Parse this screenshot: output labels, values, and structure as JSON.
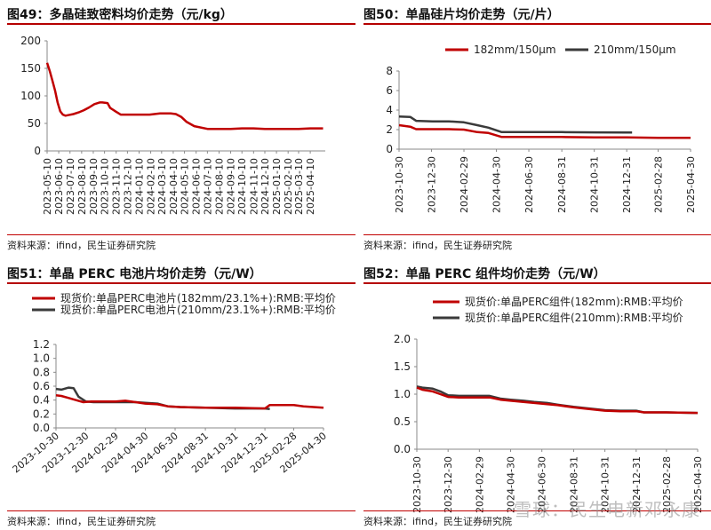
{
  "panels": [
    {
      "id": "p49",
      "title": "图49：多晶硅致密料均价走势（元/kg）",
      "source": "资料来源：ifind，民生证券研究院"
    },
    {
      "id": "p50",
      "title": "图50：单晶硅片均价走势（元/片）",
      "source": "资料来源：ifind，民生证券研究院"
    },
    {
      "id": "p51",
      "title": "图51：单晶 PERC 电池片均价走势（元/W）",
      "source": "资料来源：ifind，民生证券研究院"
    },
    {
      "id": "p52",
      "title": "图52：单晶 PERC 组件均价走势（元/W）",
      "source": "资料来源：ifind，民生证券研究院"
    }
  ],
  "watermark": "雪球：民生电新邓永康",
  "colors": {
    "red": "#c00000",
    "dark": "#3a3a3a",
    "axis": "#7f7f7f",
    "rule": "#b50000"
  },
  "chart_data": [
    {
      "type": "line",
      "title": "图49：多晶硅致密料均价走势（元/kg）",
      "ylim": [
        0,
        200
      ],
      "yticks": [
        0,
        50,
        100,
        150,
        200
      ],
      "xlim": [
        "2023-05-10",
        "2025-05-20"
      ],
      "xticks": [
        "2023-05-10",
        "2023-06-10",
        "2023-07-10",
        "2023-08-10",
        "2023-09-10",
        "2023-10-10",
        "2023-11-10",
        "2023-12-10",
        "2024-01-10",
        "2024-02-10",
        "2024-03-10",
        "2024-04-10",
        "2024-05-10",
        "2024-06-10",
        "2024-07-10",
        "2024-08-10",
        "2024-09-10",
        "2024-10-10",
        "2024-11-10",
        "2024-12-10",
        "2025-01-10",
        "2025-02-10",
        "2025-03-10",
        "2025-04-10"
      ],
      "series": [
        {
          "name": "",
          "color": "#c00000",
          "x": [
            "2023-05-10",
            "2023-05-17",
            "2023-05-24",
            "2023-05-31",
            "2023-06-07",
            "2023-06-14",
            "2023-06-21",
            "2023-06-28",
            "2023-07-05",
            "2023-07-19",
            "2023-08-02",
            "2023-08-16",
            "2023-08-30",
            "2023-09-13",
            "2023-09-27",
            "2023-10-04",
            "2023-10-18",
            "2023-10-25",
            "2023-11-08",
            "2023-11-22",
            "2023-12-06",
            "2023-12-20",
            "2024-01-10",
            "2024-02-07",
            "2024-03-06",
            "2024-03-20",
            "2024-04-03",
            "2024-04-17",
            "2024-05-01",
            "2024-05-15",
            "2024-06-05",
            "2024-07-10",
            "2024-08-10",
            "2024-09-10",
            "2024-10-10",
            "2024-11-10",
            "2024-12-10",
            "2025-01-10",
            "2025-02-10",
            "2025-03-10",
            "2025-04-10",
            "2025-05-14"
          ],
          "y": [
            160,
            145,
            128,
            110,
            88,
            72,
            66,
            64,
            65,
            67,
            70,
            74,
            79,
            85,
            88,
            88,
            87,
            78,
            72,
            66,
            66,
            66,
            66,
            66,
            68,
            68,
            68,
            67,
            62,
            53,
            45,
            40,
            40,
            40,
            41,
            41,
            40,
            40,
            40,
            40,
            41,
            41
          ]
        }
      ]
    },
    {
      "type": "line",
      "title": "图50：单晶硅片均价走势（元/片）",
      "ylim": [
        0,
        8
      ],
      "yticks": [
        0,
        2,
        4,
        6,
        8
      ],
      "xlim": [
        "2023-10-30",
        "2025-04-30"
      ],
      "xticks": [
        "2023-10-30",
        "2023-12-30",
        "2024-02-29",
        "2024-04-30",
        "2024-06-30",
        "2024-08-31",
        "2024-10-31",
        "2024-12-31",
        "2025-02-28",
        "2025-04-30"
      ],
      "legend": {
        "position": "top"
      },
      "series": [
        {
          "name": "182mm/150μm",
          "color": "#c00000",
          "x": [
            "2023-10-30",
            "2023-11-20",
            "2023-12-01",
            "2024-01-01",
            "2024-02-01",
            "2024-02-29",
            "2024-03-25",
            "2024-04-15",
            "2024-05-10",
            "2024-06-30",
            "2024-08-31",
            "2024-10-31",
            "2024-12-31",
            "2025-02-28",
            "2025-04-30"
          ],
          "y": [
            2.45,
            2.3,
            2.05,
            2.05,
            2.05,
            2.0,
            1.75,
            1.65,
            1.25,
            1.25,
            1.25,
            1.2,
            1.2,
            1.15,
            1.15
          ]
        },
        {
          "name": "210mm/150μm",
          "color": "#3a3a3a",
          "x": [
            "2023-10-30",
            "2023-11-20",
            "2023-12-01",
            "2024-01-01",
            "2024-02-01",
            "2024-02-29",
            "2024-03-25",
            "2024-04-15",
            "2024-05-10",
            "2024-06-30",
            "2024-08-31",
            "2024-10-31",
            "2024-12-31",
            "2025-01-10"
          ],
          "y": [
            3.35,
            3.3,
            2.9,
            2.85,
            2.85,
            2.75,
            2.45,
            2.2,
            1.75,
            1.75,
            1.75,
            1.72,
            1.7,
            1.7
          ]
        }
      ]
    },
    {
      "type": "line",
      "title": "图51：单晶 PERC 电池片均价走势（元/W）",
      "ylim": [
        0,
        1.2
      ],
      "yticks": [
        0,
        0.2,
        0.4,
        0.6,
        0.8,
        1.0,
        1.2
      ],
      "xlim": [
        "2023-10-30",
        "2025-04-30"
      ],
      "xticks": [
        "2023-10-30",
        "2023-12-30",
        "2024-02-29",
        "2024-04-30",
        "2024-06-30",
        "2024-08-31",
        "2024-10-31",
        "2024-12-31",
        "2025-02-28",
        "2025-04-30"
      ],
      "legend": {
        "position": "top"
      },
      "series": [
        {
          "name": "现货价:单晶PERC电池片(182mm/23.1%+):RMB:平均价",
          "color": "#c00000",
          "x": [
            "2023-10-30",
            "2023-11-10",
            "2023-11-25",
            "2023-12-10",
            "2023-12-25",
            "2024-01-10",
            "2024-02-01",
            "2024-02-29",
            "2024-03-20",
            "2024-04-10",
            "2024-04-30",
            "2024-05-25",
            "2024-06-15",
            "2024-07-10",
            "2024-08-31",
            "2024-10-31",
            "2024-12-31",
            "2025-01-10",
            "2025-02-28",
            "2025-03-20",
            "2025-04-30"
          ],
          "y": [
            0.47,
            0.46,
            0.43,
            0.4,
            0.37,
            0.38,
            0.38,
            0.38,
            0.39,
            0.37,
            0.35,
            0.34,
            0.31,
            0.3,
            0.29,
            0.29,
            0.28,
            0.33,
            0.33,
            0.31,
            0.29
          ]
        },
        {
          "name": "现货价:单晶PERC电池片(210mm/23.1%+):RMB:平均价",
          "color": "#3a3a3a",
          "x": [
            "2023-10-30",
            "2023-11-10",
            "2023-11-25",
            "2023-12-05",
            "2023-12-15",
            "2023-12-30",
            "2024-01-15",
            "2024-02-01",
            "2024-02-29",
            "2024-03-20",
            "2024-04-10",
            "2024-04-30",
            "2024-05-25",
            "2024-06-15",
            "2024-07-10",
            "2024-08-31",
            "2024-10-31",
            "2024-12-31",
            "2025-01-10"
          ],
          "y": [
            0.56,
            0.55,
            0.58,
            0.57,
            0.45,
            0.38,
            0.37,
            0.37,
            0.37,
            0.37,
            0.37,
            0.36,
            0.35,
            0.31,
            0.3,
            0.29,
            0.28,
            0.28,
            0.27
          ]
        }
      ]
    },
    {
      "type": "line",
      "title": "图52：单晶 PERC 组件均价走势（元/W）",
      "ylim": [
        0,
        2.0
      ],
      "yticks": [
        0,
        0.5,
        1.0,
        1.5,
        2.0
      ],
      "xlim": [
        "2023-10-30",
        "2025-04-30"
      ],
      "xticks": [
        "2023-10-30",
        "2023-12-30",
        "2024-02-29",
        "2024-04-30",
        "2024-06-30",
        "2024-08-31",
        "2024-10-31",
        "2024-12-31",
        "2025-02-28",
        "2025-04-30"
      ],
      "legend": {
        "position": "top"
      },
      "series": [
        {
          "name": "现货价:单晶PERC组件(182mm):RMB:平均价",
          "color": "#c00000",
          "x": [
            "2023-10-30",
            "2023-11-10",
            "2023-11-30",
            "2023-12-15",
            "2023-12-30",
            "2024-01-20",
            "2024-02-29",
            "2024-03-20",
            "2024-04-10",
            "2024-04-30",
            "2024-05-25",
            "2024-06-15",
            "2024-07-10",
            "2024-07-31",
            "2024-08-31",
            "2024-09-20",
            "2024-10-31",
            "2024-11-30",
            "2024-12-31",
            "2025-01-15",
            "2025-02-28",
            "2025-04-30"
          ],
          "y": [
            1.12,
            1.08,
            1.05,
            1.0,
            0.95,
            0.94,
            0.94,
            0.94,
            0.9,
            0.88,
            0.86,
            0.84,
            0.82,
            0.8,
            0.76,
            0.74,
            0.7,
            0.69,
            0.69,
            0.67,
            0.67,
            0.66
          ]
        },
        {
          "name": "现货价:单晶PERC组件(210mm):RMB:平均价",
          "color": "#3a3a3a",
          "x": [
            "2023-10-30",
            "2023-11-10",
            "2023-11-30",
            "2023-12-15",
            "2023-12-30",
            "2024-01-20",
            "2024-02-29",
            "2024-03-20",
            "2024-04-10",
            "2024-04-30",
            "2024-05-25",
            "2024-06-15",
            "2024-07-10",
            "2024-07-31",
            "2024-08-31",
            "2024-09-20",
            "2024-10-31",
            "2024-11-30",
            "2024-12-31",
            "2025-01-15",
            "2025-02-28",
            "2025-04-30"
          ],
          "y": [
            1.14,
            1.12,
            1.1,
            1.05,
            0.98,
            0.97,
            0.97,
            0.97,
            0.92,
            0.9,
            0.88,
            0.86,
            0.84,
            0.81,
            0.77,
            0.75,
            0.71,
            0.7,
            0.7,
            0.67,
            0.67,
            0.66
          ]
        }
      ]
    }
  ]
}
